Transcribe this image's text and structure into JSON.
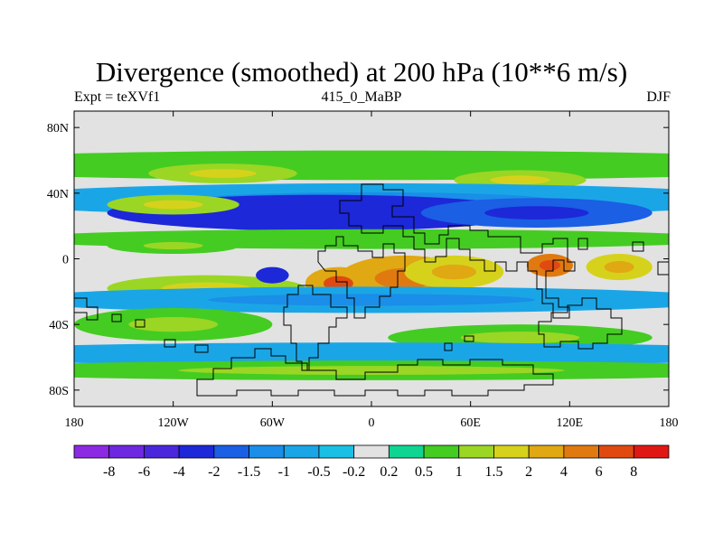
{
  "chart_data": {
    "type": "heatmap",
    "title": "Divergence (smoothed) at 200 hPa (10**6 m/s)",
    "subtitle_left": "Expt = teXVf1",
    "subtitle_center": "415_0_MaBP",
    "subtitle_right": "DJF",
    "xlim": [
      -180,
      180
    ],
    "ylim": [
      -90,
      90
    ],
    "x_ticks": [
      {
        "value": -180,
        "label": "180"
      },
      {
        "value": -120,
        "label": "120W"
      },
      {
        "value": -60,
        "label": "60W"
      },
      {
        "value": 0,
        "label": "0"
      },
      {
        "value": 60,
        "label": "60E"
      },
      {
        "value": 120,
        "label": "120E"
      },
      {
        "value": 180,
        "label": "180"
      }
    ],
    "y_ticks": [
      {
        "value": 80,
        "label": "80N"
      },
      {
        "value": 40,
        "label": "40N"
      },
      {
        "value": 0,
        "label": "0"
      },
      {
        "value": -40,
        "label": "40S"
      },
      {
        "value": -80,
        "label": "80S"
      }
    ],
    "colorbar": {
      "colors": [
        "#8c29e3",
        "#6e28e0",
        "#4a27dc",
        "#1d28d8",
        "#1a5fe4",
        "#1a8ee8",
        "#1aa6e6",
        "#1ac0e4",
        "#e2e2e2",
        "#10d492",
        "#44cc22",
        "#9bd624",
        "#d6d21c",
        "#e0a812",
        "#e07a10",
        "#e04a10",
        "#e01814"
      ],
      "labels": [
        "-8",
        "-6",
        "-4",
        "-2",
        "-1.5",
        "-1",
        "-0.5",
        "-0.2",
        "0.2",
        "0.5",
        "1",
        "1.5",
        "2",
        "4",
        "6",
        "8"
      ]
    },
    "bands": [
      {
        "lat": 57,
        "lon": 0,
        "dlat": 9,
        "dlon": 300,
        "value": 0.6
      },
      {
        "lat": 52,
        "lon": -90,
        "dlat": 6,
        "dlon": 45,
        "value": 1.2
      },
      {
        "lat": 48,
        "lon": 90,
        "dlat": 6,
        "dlon": 40,
        "value": 1.0
      },
      {
        "lat": 36,
        "lon": 0,
        "dlat": 10,
        "dlon": 240,
        "value": -0.8
      },
      {
        "lat": 28,
        "lon": -30,
        "dlat": 11,
        "dlon": 130,
        "value": -2.5
      },
      {
        "lat": 28,
        "lon": 100,
        "dlat": 9,
        "dlon": 70,
        "value": -2.0
      },
      {
        "lat": 33,
        "lon": -120,
        "dlat": 6,
        "dlon": 40,
        "value": 1.0
      },
      {
        "lat": 12,
        "lon": 0,
        "dlat": 6,
        "dlon": 220,
        "value": 0.6
      },
      {
        "lat": 8,
        "lon": -120,
        "dlat": 5,
        "dlon": 40,
        "value": 0.9
      },
      {
        "lat": -12,
        "lon": 20,
        "dlat": 14,
        "dlon": 40,
        "value": 2.5
      },
      {
        "lat": -15,
        "lon": -20,
        "dlat": 10,
        "dlon": 20,
        "value": 3.8
      },
      {
        "lat": -8,
        "lon": 50,
        "dlat": 10,
        "dlon": 30,
        "value": 1.8
      },
      {
        "lat": -18,
        "lon": -100,
        "dlat": 8,
        "dlon": 60,
        "value": 1.2
      },
      {
        "lat": -4,
        "lon": 108,
        "dlat": 7,
        "dlon": 14,
        "value": 4.5
      },
      {
        "lat": -5,
        "lon": 150,
        "dlat": 8,
        "dlon": 20,
        "value": 1.8
      },
      {
        "lat": -25,
        "lon": 0,
        "dlat": 8,
        "dlon": 220,
        "value": -0.7
      },
      {
        "lat": -40,
        "lon": -120,
        "dlat": 10,
        "dlon": 60,
        "value": 0.7
      },
      {
        "lat": -48,
        "lon": 90,
        "dlat": 8,
        "dlon": 80,
        "value": 0.9
      },
      {
        "lat": -58,
        "lon": 0,
        "dlat": 7,
        "dlon": 280,
        "value": -0.6
      },
      {
        "lat": -68,
        "lon": 0,
        "dlat": 6,
        "dlon": 260,
        "value": 0.7
      },
      {
        "lat": -10,
        "lon": -60,
        "dlat": 5,
        "dlon": 10,
        "value": -2.5
      }
    ]
  }
}
